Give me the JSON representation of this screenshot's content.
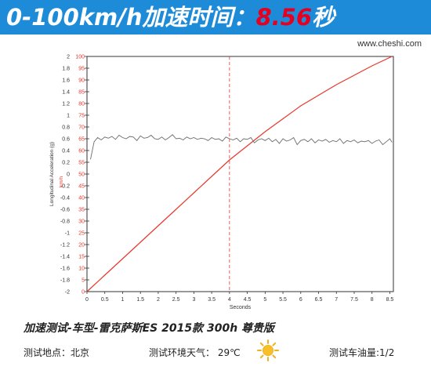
{
  "header": {
    "title_prefix": "0-100km/h加速时间：",
    "title_value": "8.56",
    "title_unit": "秒",
    "watermark": "www.cheshi.com"
  },
  "chart_data": {
    "type": "line",
    "xlabel": "Seconds",
    "ylabel_left": "Longitudinal Acceleration (g)",
    "ylabel_right": "km/h",
    "xlim": [
      0,
      8.6
    ],
    "ylim_left": [
      -2,
      2
    ],
    "ylim_right": [
      0,
      100
    ],
    "x_ticks": [
      "0",
      "0.5",
      "1",
      "1.5",
      "2",
      "2.5",
      "3",
      "3.5",
      "4",
      "4.5",
      "5",
      "5.5",
      "6",
      "6.5",
      "7",
      "7.5",
      "8",
      "8.5"
    ],
    "y_ticks_left": [
      "2",
      "1.8",
      "1.6",
      "1.4",
      "1.2",
      "1",
      "0.8",
      "0.6",
      "0.4",
      "0.2",
      "0",
      "-0.2",
      "-0.4",
      "-0.6",
      "-0.8",
      "-1",
      "-1.2",
      "-1.4",
      "-1.6",
      "-1.8",
      "-2"
    ],
    "y_ticks_right": [
      "100",
      "95",
      "90",
      "85",
      "80",
      "75",
      "70",
      "65",
      "60",
      "55",
      "50",
      "45",
      "40",
      "35",
      "30",
      "25",
      "20",
      "15",
      "10",
      "5",
      "0"
    ],
    "marker_x": 4,
    "series": [
      {
        "axis": "right",
        "color": "#e8372b",
        "x": [
          0,
          0.5,
          1,
          1.5,
          2,
          2.5,
          3,
          3.5,
          4,
          4.5,
          5,
          5.5,
          6,
          6.5,
          7,
          7.5,
          8,
          8.56
        ],
        "values": [
          0,
          7,
          14,
          21,
          28,
          35,
          42,
          49,
          56,
          62,
          68,
          73.5,
          79,
          83.5,
          88,
          92,
          96,
          100
        ]
      },
      {
        "axis": "left",
        "color": "#6b6b6b",
        "x": [
          0.1,
          0.2,
          0.3,
          0.4,
          0.5,
          0.6,
          0.7,
          0.8,
          0.9,
          1.0,
          1.1,
          1.2,
          1.3,
          1.4,
          1.5,
          1.6,
          1.7,
          1.8,
          1.9,
          2.0,
          2.1,
          2.2,
          2.3,
          2.4,
          2.5,
          2.6,
          2.7,
          2.8,
          2.9,
          3.0,
          3.1,
          3.2,
          3.3,
          3.4,
          3.5,
          3.6,
          3.7,
          3.8,
          3.9,
          4.0,
          4.1,
          4.2,
          4.3,
          4.4,
          4.5,
          4.6,
          4.7,
          4.8,
          4.9,
          5.0,
          5.1,
          5.2,
          5.3,
          5.4,
          5.5,
          5.6,
          5.7,
          5.8,
          5.9,
          6.0,
          6.1,
          6.2,
          6.3,
          6.4,
          6.5,
          6.6,
          6.7,
          6.8,
          6.9,
          7.0,
          7.1,
          7.2,
          7.3,
          7.4,
          7.5,
          7.6,
          7.7,
          7.8,
          7.9,
          8.0,
          8.1,
          8.2,
          8.3,
          8.4,
          8.5,
          8.56
        ],
        "values": [
          0.25,
          0.55,
          0.62,
          0.58,
          0.63,
          0.61,
          0.64,
          0.59,
          0.66,
          0.62,
          0.6,
          0.64,
          0.63,
          0.57,
          0.65,
          0.61,
          0.62,
          0.66,
          0.6,
          0.59,
          0.63,
          0.58,
          0.62,
          0.67,
          0.6,
          0.61,
          0.58,
          0.63,
          0.6,
          0.62,
          0.59,
          0.61,
          0.6,
          0.57,
          0.62,
          0.59,
          0.6,
          0.56,
          0.63,
          0.6,
          0.58,
          0.61,
          0.55,
          0.6,
          0.59,
          0.62,
          0.53,
          0.58,
          0.6,
          0.57,
          0.61,
          0.55,
          0.59,
          0.52,
          0.6,
          0.56,
          0.58,
          0.62,
          0.5,
          0.57,
          0.59,
          0.55,
          0.6,
          0.53,
          0.58,
          0.56,
          0.59,
          0.54,
          0.57,
          0.55,
          0.6,
          0.52,
          0.57,
          0.55,
          0.58,
          0.53,
          0.56,
          0.55,
          0.57,
          0.52,
          0.56,
          0.58,
          0.5,
          0.55,
          0.6,
          0.54
        ]
      }
    ]
  },
  "footer": {
    "title": "加速测试-车型-雷克萨斯ES  2015款 300h 尊贵版",
    "location": "测试地点：北京",
    "weather": "测试环境天气：  29℃",
    "fuel": "测试车油量:1/2"
  },
  "colors": {
    "header_bg": "#1e8bd9",
    "speed_line": "#e8372b",
    "accel_line": "#6b6b6b",
    "marker_line": "#e8372b",
    "sun": "#f2b01e"
  }
}
